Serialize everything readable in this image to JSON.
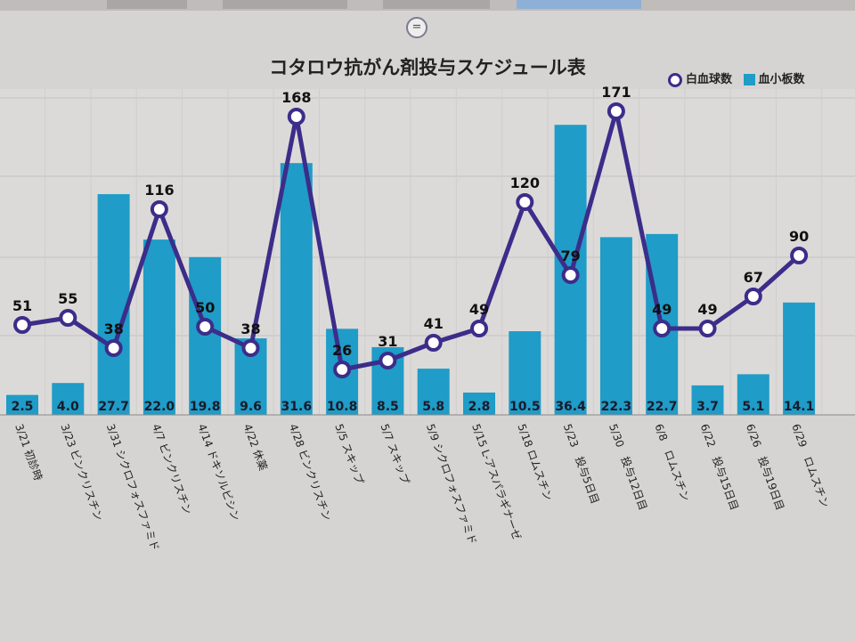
{
  "chart_data": {
    "type": "bar+line",
    "title": "コタロウ抗がん剤投与スケジュール表",
    "legend_position": "top-right",
    "categories": [
      "3/21 初診時",
      "3/23 ビンクリスチン",
      "3/31 シクロフォスファミド",
      "4/7 ビンクリスチン",
      "4/14 ドキソルビシン",
      "4/22 休薬",
      "4/28 ビンクリスチン",
      "5/5 スキップ",
      "5/7 スキップ",
      "5/9 シクロフォスファミド",
      "5/15 L-アスパラギナーゼ",
      "5/18 ロムスチン",
      "5/23　投与5日目",
      "5/30　投与12日目",
      "6/8　ロムスチン",
      "6/22　投与15日目",
      "6/26　投与19日目",
      "6/29　ロムスチン"
    ],
    "series": [
      {
        "name": "白血球数",
        "type": "line",
        "color": "#3c2d8a",
        "values": [
          51,
          55,
          38,
          116,
          50,
          38,
          168,
          26,
          31,
          41,
          49,
          120,
          79,
          171,
          49,
          49,
          67,
          90
        ]
      },
      {
        "name": "血小板数",
        "type": "bar",
        "color": "#1f9cc7",
        "values": [
          2.5,
          4.0,
          27.7,
          22.0,
          19.8,
          9.6,
          31.6,
          10.8,
          8.5,
          5.8,
          2.8,
          10.5,
          36.4,
          22.3,
          22.7,
          3.7,
          5.1,
          14.1
        ]
      }
    ],
    "bar_labels": [
      "2.5",
      "4.0",
      "27.7",
      "22.0",
      "19.8",
      "9.6",
      "31.6",
      "10.8",
      "8.5",
      "5.8",
      "2.8",
      "10.5",
      "36.4",
      "22.3",
      "22.7",
      "3.7",
      "5.1",
      "14.1"
    ],
    "grid": true
  }
}
